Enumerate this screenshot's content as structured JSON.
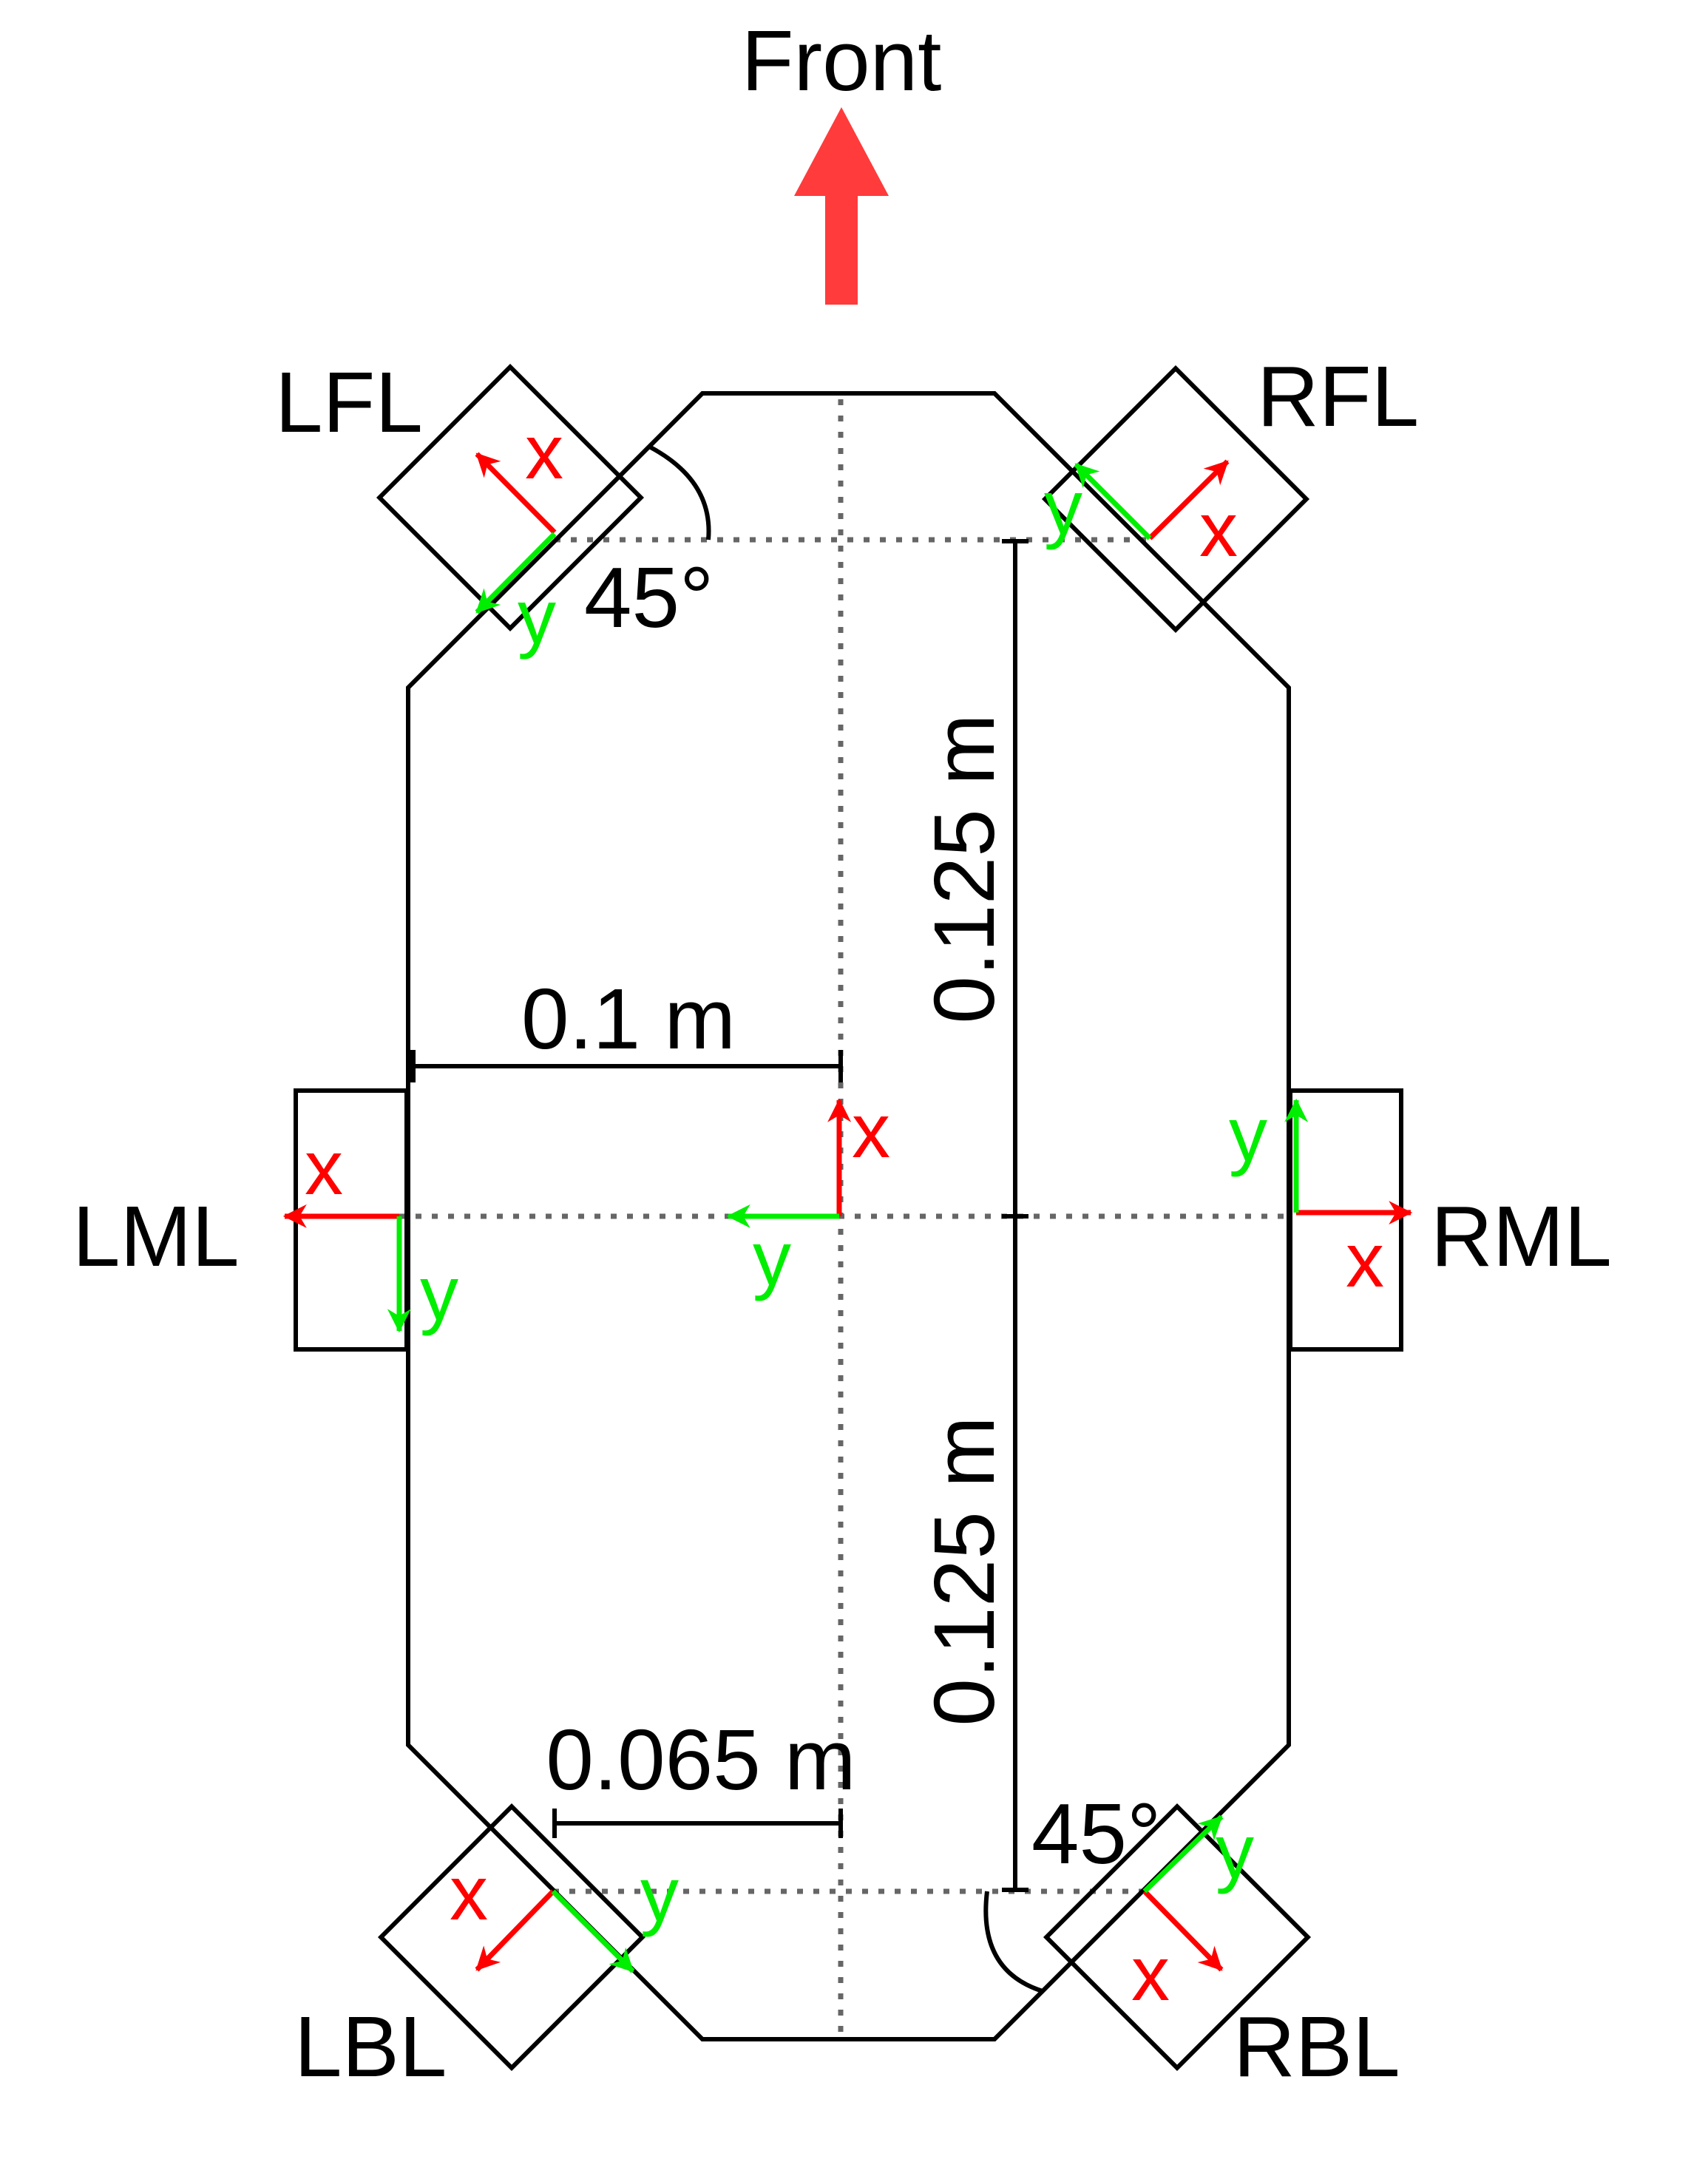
{
  "title": "Front",
  "colors": {
    "outline": "#000000",
    "x_axis": "#ff0000",
    "y_axis": "#00ee00",
    "front_arrow": "#ff3b3b",
    "dotted": "#666666"
  },
  "sensors": [
    {
      "id": "lfl",
      "label": "LFL"
    },
    {
      "id": "rfl",
      "label": "RFL"
    },
    {
      "id": "lml",
      "label": "LML"
    },
    {
      "id": "rml",
      "label": "RML"
    },
    {
      "id": "lbl",
      "label": "LBL"
    },
    {
      "id": "rbl",
      "label": "RBL"
    }
  ],
  "axes": {
    "x": "x",
    "y": "y"
  },
  "dimensions": {
    "half_width": "0.1 m",
    "front_half_length": "0.125 m",
    "back_half_length": "0.125 m",
    "back_sensor_offset": "0.065 m"
  },
  "angles": {
    "front_left": "45°",
    "back_right": "45°"
  }
}
